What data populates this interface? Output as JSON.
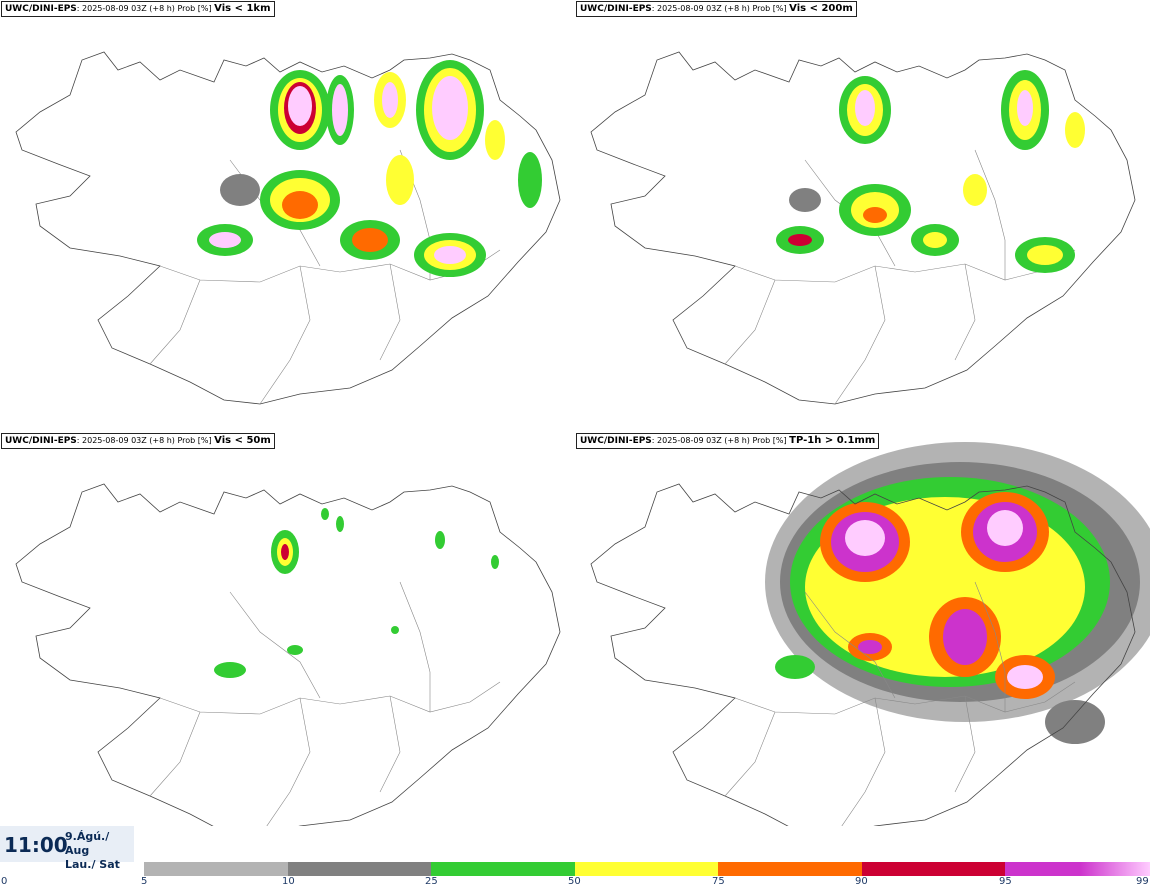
{
  "panels": [
    {
      "source": "UWC/DINI-EPS",
      "meta": ": 2025-08-09 03Z (+8 h) Prob [%] ",
      "variable": "Vis < 1km"
    },
    {
      "source": "UWC/DINI-EPS",
      "meta": ": 2025-08-09 03Z (+8 h) Prob [%] ",
      "variable": "Vis < 200m"
    },
    {
      "source": "UWC/DINI-EPS",
      "meta": ": 2025-08-09 03Z (+8 h) Prob [%] ",
      "variable": "Vis < 50m"
    },
    {
      "source": "UWC/DINI-EPS",
      "meta": ": 2025-08-09 03Z (+8 h) Prob [%] ",
      "variable": "TP-1h > 0.1mm"
    }
  ],
  "time": {
    "hour": "11:00",
    "date_line1": "9.Ágú./ Aug",
    "date_line2": "Lau./ Sat"
  },
  "color_scale": {
    "ticks": [
      "0",
      "5",
      "10",
      "25",
      "50",
      "75",
      "90",
      "95",
      "99"
    ],
    "colors": [
      "#b3b3b3",
      "#808080",
      "#33cc33",
      "#ffff33",
      "#ff6a00",
      "#cc0033",
      "#cc33cc",
      "#ffccff"
    ]
  }
}
